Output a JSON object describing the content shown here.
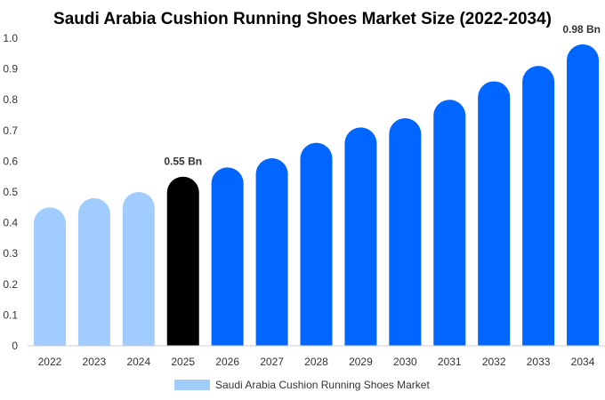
{
  "colors": {
    "historical": "#a0cdfe",
    "highlight": "#000000",
    "forecast": "#0066ff",
    "axis": "#cccccc"
  },
  "chart_data": {
    "type": "bar",
    "title": "Saudi Arabia Cushion Running Shoes Market Size (2022-2034)",
    "categories": [
      "2022",
      "2023",
      "2024",
      "2025",
      "2026",
      "2027",
      "2028",
      "2029",
      "2030",
      "2031",
      "2032",
      "2033",
      "2034"
    ],
    "series": [
      {
        "name": "Saudi Arabia Cushion Running Shoes Market",
        "values": [
          0.45,
          0.48,
          0.5,
          0.55,
          0.58,
          0.61,
          0.66,
          0.71,
          0.74,
          0.8,
          0.86,
          0.91,
          0.98
        ]
      }
    ],
    "bar_color_groups": [
      "historical",
      "historical",
      "historical",
      "highlight",
      "forecast",
      "forecast",
      "forecast",
      "forecast",
      "forecast",
      "forecast",
      "forecast",
      "forecast",
      "forecast"
    ],
    "data_labels": [
      {
        "category": "2025",
        "text": "0.55 Bn"
      },
      {
        "category": "2034",
        "text": "0.98 Bn"
      }
    ],
    "ylim": [
      0,
      1.0
    ],
    "yticks": [
      "0",
      "0.1",
      "0.2",
      "0.3",
      "0.4",
      "0.5",
      "0.6",
      "0.7",
      "0.8",
      "0.9",
      "1.0"
    ],
    "xlabel": "",
    "ylabel": "",
    "grid": false,
    "legend": {
      "position": "bottom-center",
      "label": "Saudi Arabia Cushion Running Shoes Market"
    }
  }
}
